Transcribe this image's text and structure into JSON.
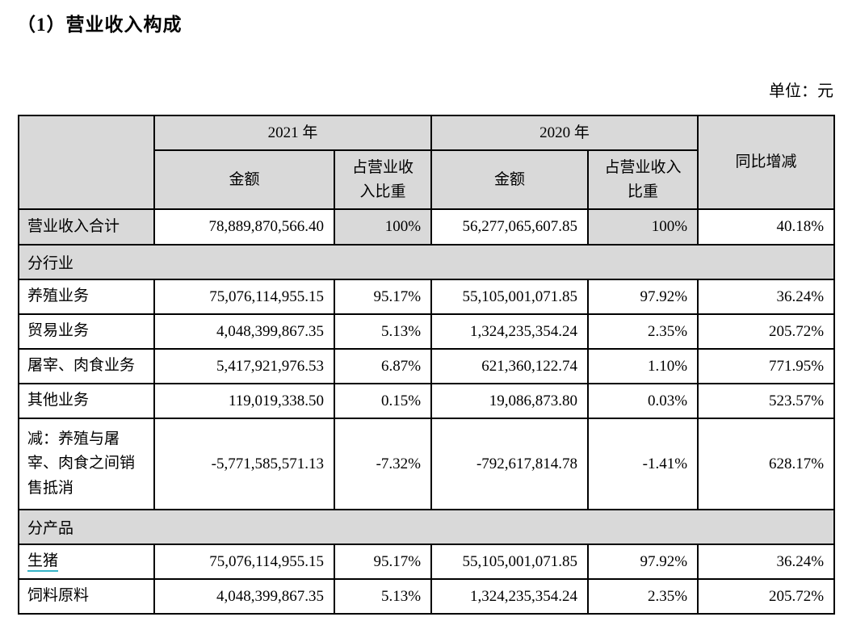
{
  "title": "（1）营业收入构成",
  "unit_label": "单位：元",
  "colors": {
    "table_fill": "#d9d9d9",
    "border": "#000000",
    "text": "#000000",
    "pig_link_underline": "#35b3c6"
  },
  "table": {
    "header": {
      "year_2021": "2021 年",
      "year_2020": "2020 年",
      "amount_2021": "金额",
      "share_2021": "占营业收\n入比重",
      "amount_2020": "金额",
      "share_2020": "占营业收入\n比重",
      "yoy": "同比增减"
    },
    "rows": [
      {
        "type": "total",
        "label": "营业收入合计",
        "a2021": "78,889,870,566.40",
        "p2021": "100%",
        "a2020": "56,277,065,607.85",
        "p2020": "100%",
        "yoy": "40.18%"
      },
      {
        "type": "section",
        "label": "分行业"
      },
      {
        "type": "data",
        "label": "养殖业务",
        "a2021": "75,076,114,955.15",
        "p2021": "95.17%",
        "a2020": "55,105,001,071.85",
        "p2020": "97.92%",
        "yoy": "36.24%"
      },
      {
        "type": "data",
        "label": "贸易业务",
        "a2021": "4,048,399,867.35",
        "p2021": "5.13%",
        "a2020": "1,324,235,354.24",
        "p2020": "2.35%",
        "yoy": "205.72%"
      },
      {
        "type": "data",
        "label": "屠宰、肉食业务",
        "a2021": "5,417,921,976.53",
        "p2021": "6.87%",
        "a2020": "621,360,122.74",
        "p2020": "1.10%",
        "yoy": "771.95%"
      },
      {
        "type": "data",
        "label": "其他业务",
        "a2021": "119,019,338.50",
        "p2021": "0.15%",
        "a2020": "19,086,873.80",
        "p2020": "0.03%",
        "yoy": "523.57%"
      },
      {
        "type": "data",
        "tall": true,
        "label": "减：养殖与屠\n宰、肉食之间销\n售抵消",
        "a2021": "-5,771,585,571.13",
        "p2021": "-7.32%",
        "a2020": "-792,617,814.78",
        "p2020": "-1.41%",
        "yoy": "628.17%"
      },
      {
        "type": "section",
        "label": "分产品"
      },
      {
        "type": "data",
        "link": true,
        "label": "生猪",
        "a2021": "75,076,114,955.15",
        "p2021": "95.17%",
        "a2020": "55,105,001,071.85",
        "p2020": "97.92%",
        "yoy": "36.24%"
      },
      {
        "type": "data",
        "label": "饲料原料",
        "a2021": "4,048,399,867.35",
        "p2021": "5.13%",
        "a2020": "1,324,235,354.24",
        "p2020": "2.35%",
        "yoy": "205.72%"
      }
    ]
  }
}
